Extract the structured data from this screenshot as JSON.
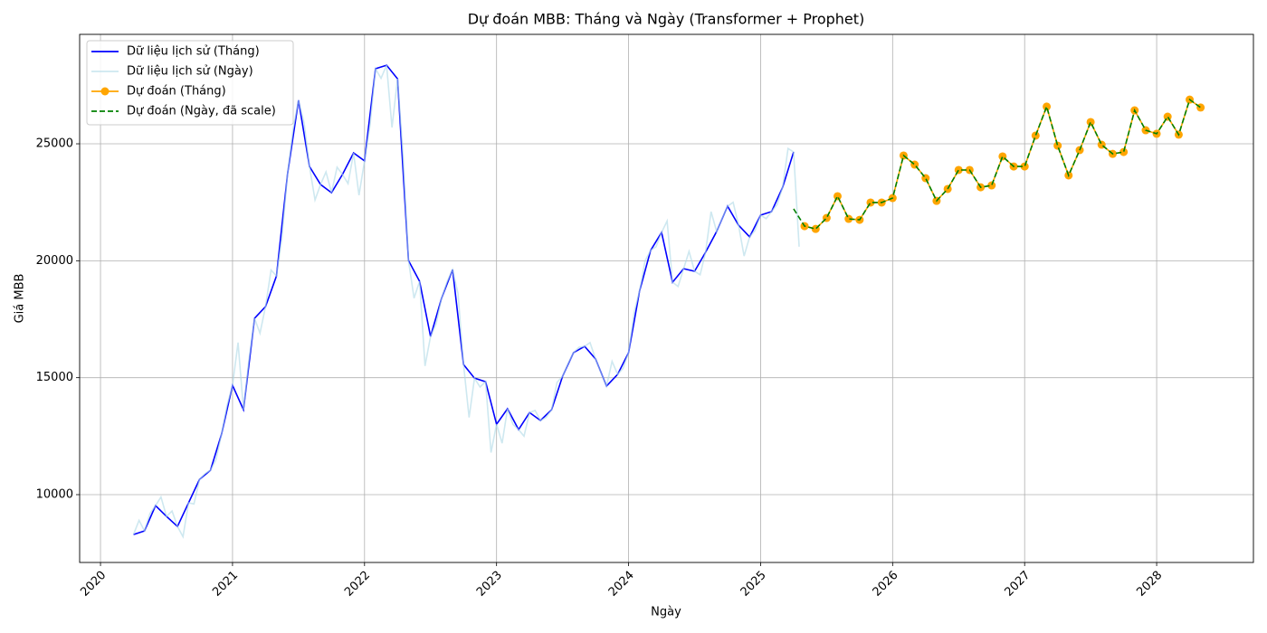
{
  "chart_data": {
    "type": "line",
    "title": "Dự đoán MBB: Tháng và Ngày (Transformer + Prophet)",
    "x_label": "Ngày",
    "y_label": "Giá MBB",
    "xlim": [
      2019.842,
      2028.733
    ],
    "ylim": [
      7100,
      29679
    ],
    "xticks": [
      2020,
      2021,
      2022,
      2023,
      2024,
      2025,
      2026,
      2027,
      2028
    ],
    "yticks": [
      10000,
      15000,
      20000,
      25000
    ],
    "grid": true,
    "legend": "upper-left",
    "series": [
      {
        "name": "Dữ liệu lịch sử (Tháng)",
        "color": "#0000ff",
        "opacity": 1,
        "x": [
          2020.25,
          2020.333,
          2020.417,
          2020.5,
          2020.583,
          2020.667,
          2020.75,
          2020.833,
          2020.917,
          2021.0,
          2021.083,
          2021.167,
          2021.25,
          2021.333,
          2021.417,
          2021.5,
          2021.583,
          2021.667,
          2021.75,
          2021.833,
          2021.917,
          2022.0,
          2022.083,
          2022.167,
          2022.25,
          2022.333,
          2022.417,
          2022.5,
          2022.583,
          2022.667,
          2022.75,
          2022.833,
          2022.917,
          2023.0,
          2023.083,
          2023.167,
          2023.25,
          2023.333,
          2023.417,
          2023.5,
          2023.583,
          2023.667,
          2023.75,
          2023.833,
          2023.917,
          2024.0,
          2024.083,
          2024.167,
          2024.25,
          2024.333,
          2024.417,
          2024.5,
          2024.583,
          2024.667,
          2024.75,
          2024.833,
          2024.917,
          2025.0,
          2025.083,
          2025.167,
          2025.25
        ],
        "values": [
          8295,
          8450,
          9530,
          9070,
          8640,
          9650,
          10650,
          11040,
          12590,
          14670,
          13630,
          17540,
          18040,
          19350,
          23720,
          26860,
          24030,
          23260,
          22910,
          23690,
          24610,
          24270,
          28210,
          28360,
          27780,
          20010,
          19120,
          16760,
          18390,
          19620,
          15560,
          14980,
          14830,
          13010,
          13670,
          12780,
          13510,
          13170,
          13630,
          15060,
          16070,
          16340,
          15800,
          14640,
          15140,
          16070,
          18700,
          20440,
          21210,
          19080,
          19660,
          19550,
          20360,
          21250,
          22330,
          21520,
          21020,
          21950,
          22100,
          23140,
          24650
        ]
      },
      {
        "name": "Dữ liệu lịch sử (Ngày)",
        "color": "#add8e6",
        "opacity": 0.6,
        "x": [
          2020.25,
          2020.292,
          2020.333,
          2020.375,
          2020.417,
          2020.458,
          2020.5,
          2020.542,
          2020.583,
          2020.625,
          2020.667,
          2020.708,
          2020.75,
          2020.792,
          2020.833,
          2020.875,
          2020.917,
          2020.958,
          2021.0,
          2021.042,
          2021.083,
          2021.125,
          2021.167,
          2021.208,
          2021.25,
          2021.292,
          2021.333,
          2021.375,
          2021.417,
          2021.458,
          2021.5,
          2021.542,
          2021.583,
          2021.625,
          2021.667,
          2021.708,
          2021.75,
          2021.792,
          2021.833,
          2021.875,
          2021.917,
          2021.958,
          2022.0,
          2022.042,
          2022.083,
          2022.125,
          2022.167,
          2022.208,
          2022.25,
          2022.292,
          2022.333,
          2022.375,
          2022.417,
          2022.458,
          2022.5,
          2022.542,
          2022.583,
          2022.625,
          2022.667,
          2022.708,
          2022.75,
          2022.792,
          2022.833,
          2022.875,
          2022.917,
          2022.958,
          2023.0,
          2023.042,
          2023.083,
          2023.125,
          2023.167,
          2023.208,
          2023.25,
          2023.292,
          2023.333,
          2023.375,
          2023.417,
          2023.458,
          2023.5,
          2023.542,
          2023.583,
          2023.625,
          2023.667,
          2023.708,
          2023.75,
          2023.792,
          2023.833,
          2023.875,
          2023.917,
          2023.958,
          2024.0,
          2024.042,
          2024.083,
          2024.125,
          2024.167,
          2024.208,
          2024.25,
          2024.292,
          2024.333,
          2024.375,
          2024.417,
          2024.458,
          2024.5,
          2024.542,
          2024.583,
          2024.625,
          2024.667,
          2024.708,
          2024.75,
          2024.792,
          2024.833,
          2024.875,
          2024.917,
          2024.958,
          2025.0,
          2025.042,
          2025.083,
          2025.125,
          2025.167,
          2025.208,
          2025.25,
          2025.292
        ],
        "values": [
          8295,
          8900,
          8450,
          9200,
          9530,
          9900,
          9070,
          9300,
          8640,
          8200,
          9650,
          9600,
          10650,
          10900,
          11040,
          11500,
          12590,
          13800,
          14670,
          16500,
          13630,
          15800,
          17540,
          16900,
          18040,
          19600,
          19350,
          21000,
          23720,
          25600,
          26860,
          25900,
          24030,
          22600,
          23260,
          23800,
          22910,
          24000,
          23690,
          23300,
          24610,
          22800,
          24270,
          25800,
          28210,
          27800,
          28360,
          25700,
          27780,
          24500,
          20010,
          18400,
          19120,
          15500,
          16760,
          17300,
          18390,
          19100,
          19620,
          18600,
          15560,
          13300,
          14980,
          14600,
          14830,
          11800,
          13010,
          12200,
          13670,
          13000,
          12780,
          12500,
          13510,
          13600,
          13170,
          13300,
          13630,
          14800,
          15060,
          15600,
          16070,
          16300,
          16340,
          16500,
          15800,
          15200,
          14640,
          15700,
          15140,
          15400,
          16070,
          17800,
          18700,
          20000,
          20440,
          20600,
          21210,
          21700,
          19080,
          18900,
          19660,
          20400,
          19550,
          19400,
          20360,
          22100,
          21250,
          21800,
          22330,
          22500,
          21520,
          20200,
          21020,
          21300,
          21950,
          21800,
          22100,
          22400,
          23140,
          24800,
          24650,
          20600
        ]
      },
      {
        "name": "Dự đoán (Tháng)",
        "color": "#ffa500",
        "opacity": 1,
        "marker": "circle",
        "x": [
          2025.333,
          2025.417,
          2025.5,
          2025.583,
          2025.667,
          2025.75,
          2025.833,
          2025.917,
          2026.0,
          2026.083,
          2026.167,
          2026.25,
          2026.333,
          2026.417,
          2026.5,
          2026.583,
          2026.667,
          2026.75,
          2026.833,
          2026.917,
          2027.0,
          2027.083,
          2027.167,
          2027.25,
          2027.333,
          2027.417,
          2027.5,
          2027.583,
          2027.667,
          2027.75,
          2027.833,
          2027.917,
          2028.0,
          2028.083,
          2028.167,
          2028.25,
          2028.333
        ],
        "values": [
          21480,
          21360,
          21830,
          22760,
          21790,
          21750,
          22490,
          22490,
          22680,
          24500,
          24110,
          23530,
          22560,
          23070,
          23880,
          23880,
          23140,
          23220,
          24460,
          24030,
          24030,
          25350,
          26590,
          24920,
          23650,
          24730,
          25930,
          24960,
          24570,
          24650,
          26430,
          25580,
          25430,
          26160,
          25390,
          26890,
          26550
        ]
      },
      {
        "name": "Dự đoán (Ngày, đã scale)",
        "color": "#008000",
        "opacity": 1,
        "dashed": true,
        "x": [
          2025.25,
          2025.333,
          2025.417,
          2025.5,
          2025.583,
          2025.667,
          2025.75,
          2025.833,
          2025.917,
          2026.0,
          2026.083,
          2026.167,
          2026.25,
          2026.333,
          2026.417,
          2026.5,
          2026.583,
          2026.667,
          2026.75,
          2026.833,
          2026.917,
          2027.0,
          2027.083,
          2027.167,
          2027.25,
          2027.333,
          2027.417,
          2027.5,
          2027.583,
          2027.667,
          2027.75,
          2027.833,
          2027.917,
          2028.0,
          2028.083,
          2028.167,
          2028.25,
          2028.333
        ],
        "values": [
          22220,
          21480,
          21360,
          21830,
          22760,
          21790,
          21750,
          22490,
          22490,
          22680,
          24500,
          24110,
          23530,
          22560,
          23070,
          23880,
          23880,
          23140,
          23220,
          24460,
          24030,
          24030,
          25350,
          26590,
          24920,
          23650,
          24730,
          25930,
          24960,
          24570,
          24650,
          26430,
          25580,
          25430,
          26160,
          25390,
          26890,
          26550
        ]
      }
    ]
  }
}
